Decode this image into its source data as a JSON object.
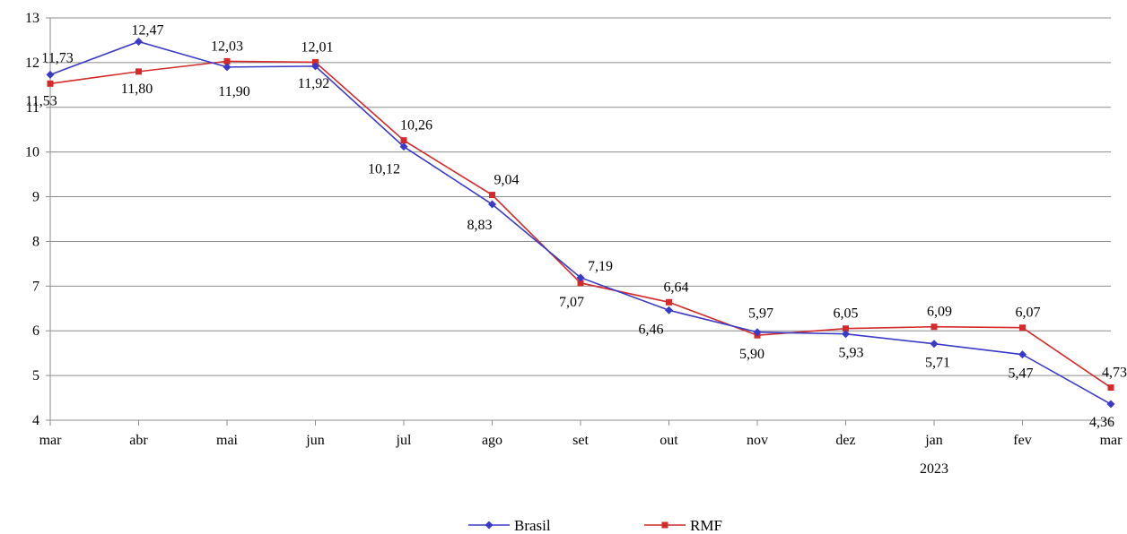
{
  "chart_data": {
    "type": "line",
    "title": "",
    "xlabel": "",
    "ylabel": "",
    "categories": [
      "mar",
      "abr",
      "mai",
      "jun",
      "jul",
      "ago",
      "set",
      "out",
      "nov",
      "dez",
      "jan",
      "fev",
      "mar"
    ],
    "category_sublabels": [
      "",
      "",
      "",
      "",
      "",
      "",
      "",
      "",
      "",
      "",
      "2023",
      "",
      ""
    ],
    "yticks": [
      "4",
      "5",
      "6",
      "7",
      "8",
      "9",
      "10",
      "11",
      "12",
      "13"
    ],
    "ylim": [
      4,
      13
    ],
    "grid": true,
    "legend_position": "bottom",
    "series": [
      {
        "name": "Brasil",
        "color": "#3a3ac8",
        "marker": "diamond",
        "values": [
          11.73,
          12.47,
          11.9,
          11.92,
          10.12,
          8.83,
          7.19,
          6.46,
          5.97,
          5.93,
          5.71,
          5.47,
          4.36
        ],
        "labels": [
          "11,73",
          "12,47",
          "11,90",
          "11,92",
          "10,12",
          "8,83",
          "7,19",
          "6,46",
          "5,97",
          "5,93",
          "5,71",
          "5,47",
          "4,36"
        ]
      },
      {
        "name": "RMF",
        "color": "#d42a2a",
        "marker": "square",
        "values": [
          11.53,
          11.8,
          12.03,
          12.01,
          10.26,
          9.04,
          7.07,
          6.64,
          5.9,
          6.05,
          6.09,
          6.07,
          4.73
        ],
        "labels": [
          "11,53",
          "11,80",
          "12,03",
          "12,01",
          "10,26",
          "9,04",
          "7,07",
          "6,64",
          "5,90",
          "6,05",
          "6,09",
          "6,07",
          "4,73"
        ]
      }
    ]
  }
}
